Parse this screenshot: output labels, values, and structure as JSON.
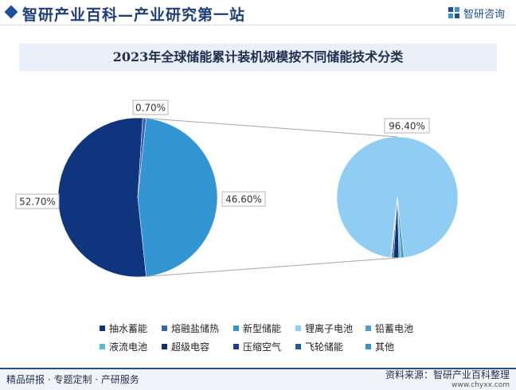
{
  "header": {
    "title": "智研产业百科—产业研究第一站",
    "logo_text": "智研咨询",
    "logo_icon": "zhiyan-logo-icon"
  },
  "chart_data": {
    "type": "pie",
    "title": "2023年全球储能累计装机规模按不同储能技术分类",
    "main_pie": {
      "slices": [
        {
          "label": "抽水蓄能",
          "value": 52.7,
          "display": "52.70%",
          "color": "#10357f"
        },
        {
          "label": "熔融盐储热",
          "value": 0.7,
          "display": "0.70%",
          "color": "#3a63b0"
        },
        {
          "label": "新型储能",
          "value": 46.6,
          "display": "46.60%",
          "color": "#3395d1"
        }
      ]
    },
    "detail_pie": {
      "parent": "新型储能",
      "slices": [
        {
          "label": "锂离子电池",
          "value": 96.4,
          "display": "96.40%",
          "color": "#8fcdf2"
        },
        {
          "label": "铅蓄电池",
          "value": 0.9,
          "color": "#4d9fcf"
        },
        {
          "label": "液流电池",
          "value": 0.5,
          "color": "#57bdd6"
        },
        {
          "label": "超级电容",
          "value": 1.4,
          "color": "#12326e"
        },
        {
          "label": "压缩空气",
          "value": 0.4,
          "color": "#1d3f8a"
        },
        {
          "label": "飞轮储能",
          "value": 0.2,
          "color": "#245f8a"
        },
        {
          "label": "其他",
          "value": 0.2,
          "color": "#3a8fcf"
        }
      ]
    },
    "legend": {
      "placement": "bottom",
      "items": [
        {
          "label": "抽水蓄能",
          "color": "#10357f"
        },
        {
          "label": "熔融盐储热",
          "color": "#3a63b0"
        },
        {
          "label": "新型储能",
          "color": "#3395d1"
        },
        {
          "label": "锂离子电池",
          "color": "#8fcdf2"
        },
        {
          "label": "铅蓄电池",
          "color": "#4d9fcf"
        },
        {
          "label": "液流电池",
          "color": "#57bdd6"
        },
        {
          "label": "超级电容",
          "color": "#12326e"
        },
        {
          "label": "压缩空气",
          "color": "#1d3f8a"
        },
        {
          "label": "飞轮储能",
          "color": "#245f8a"
        },
        {
          "label": "其他",
          "color": "#3a8fcf"
        }
      ]
    }
  },
  "footer": {
    "left": "精品研报 · 专题定制 · 产研服务",
    "source": "资料来源：智研产业百科整理",
    "url": "www.chyxx.com"
  }
}
